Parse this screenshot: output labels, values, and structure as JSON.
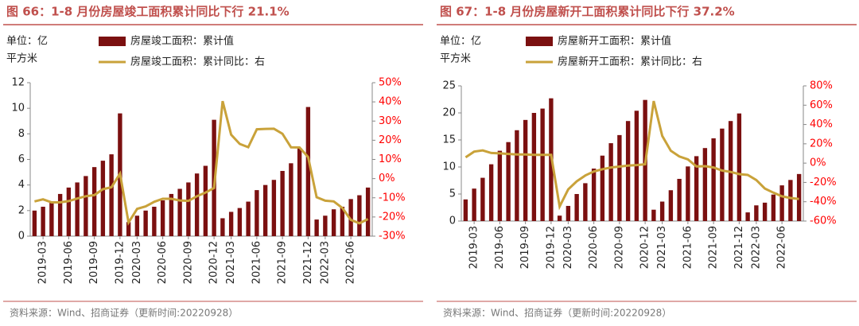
{
  "chart_data": [
    {
      "type": "bar-line",
      "title": "图 66：1-8 月份房屋竣工面积累计同比下行 21.1%",
      "unit_label": [
        "单位：亿",
        "平方米"
      ],
      "categories": [
        null,
        "2019-03",
        null,
        null,
        "2019-06",
        null,
        null,
        "2019-09",
        null,
        null,
        "2019-12",
        null,
        "2020-03",
        null,
        null,
        "2020-06",
        null,
        null,
        "2020-09",
        null,
        null,
        "2020-12",
        null,
        "2021-03",
        null,
        null,
        "2021-06",
        null,
        null,
        "2021-09",
        null,
        null,
        "2021-12",
        null,
        "2022-03",
        null,
        null,
        "2022-06",
        null,
        null
      ],
      "series": [
        {
          "name": "房屋竣工面积：累计值",
          "type": "bar",
          "color": "#7b1010",
          "values": [
            2.0,
            2.3,
            2.7,
            3.3,
            3.8,
            4.2,
            4.7,
            5.4,
            5.9,
            6.4,
            9.6,
            1.1,
            1.6,
            2.0,
            2.3,
            2.8,
            3.3,
            3.7,
            4.2,
            4.9,
            5.5,
            9.1,
            1.4,
            1.9,
            2.2,
            2.7,
            3.6,
            4.0,
            4.4,
            5.1,
            5.7,
            6.9,
            10.1,
            1.3,
            1.6,
            2.1,
            2.3,
            2.9,
            3.2,
            3.8
          ]
        },
        {
          "name": "房屋竣工面积：累计同比：右",
          "type": "line",
          "axis": "y2",
          "color": "#c9a23a",
          "values": [
            -11.9,
            -10.8,
            -12.4,
            -12.4,
            -11.7,
            -10.4,
            -9.2,
            -8.6,
            -5.5,
            -4.5,
            2.6,
            -22.9,
            -15.8,
            -14.5,
            -12.1,
            -10.5,
            -10.5,
            -11.4,
            -11.6,
            -9.2,
            -7.3,
            -4.9,
            40.4,
            22.9,
            18.1,
            16.4,
            25.7,
            25.9,
            26.0,
            23.4,
            16.3,
            16.2,
            11.2,
            -9.7,
            -11.5,
            -11.9,
            -15.3,
            -21.5,
            -23.3,
            -21.1
          ]
        }
      ],
      "ylim": [
        0,
        12
      ],
      "yticks": [
        0,
        2,
        4,
        6,
        8,
        10,
        12
      ],
      "y2lim": [
        -30,
        50
      ],
      "y2ticks": [
        {
          "value": -30,
          "label": "-30%"
        },
        {
          "value": -20,
          "label": "-20%"
        },
        {
          "value": -10,
          "label": "-10%"
        },
        {
          "value": 0,
          "label": "0%"
        },
        {
          "value": 10,
          "label": "10%"
        },
        {
          "value": 20,
          "label": "20%"
        },
        {
          "value": 30,
          "label": "30%"
        },
        {
          "value": 40,
          "label": "40%"
        },
        {
          "value": 50,
          "label": "50%"
        }
      ],
      "source": "资料来源：Wind、招商证券（更新时间:20220928）"
    },
    {
      "type": "bar-line",
      "title": "图 67：1-8 月份房屋新开工面积累计同比下行 37.2%",
      "unit_label": [
        "单位：亿",
        "平方米"
      ],
      "categories": [
        null,
        "2019-03",
        null,
        null,
        "2019-06",
        null,
        null,
        "2019-09",
        null,
        null,
        "2019-12",
        null,
        "2020-03",
        null,
        null,
        "2020-06",
        null,
        null,
        "2020-09",
        null,
        null,
        "2020-12",
        null,
        "2021-03",
        null,
        null,
        "2021-06",
        null,
        null,
        "2021-09",
        null,
        null,
        "2021-12",
        null,
        "2022-03",
        null,
        null,
        "2022-06",
        null,
        null
      ],
      "series": [
        {
          "name": "房屋新开工面积：累计值",
          "type": "bar",
          "color": "#7b1010",
          "values": [
            4.0,
            6.0,
            8.0,
            10.5,
            13.0,
            14.6,
            16.8,
            18.7,
            20.0,
            20.8,
            22.7,
            1.0,
            2.8,
            5.0,
            7.0,
            9.7,
            12.1,
            14.4,
            15.9,
            18.5,
            20.4,
            22.4,
            2.1,
            3.6,
            5.7,
            7.8,
            10.1,
            12.0,
            13.5,
            15.3,
            17.1,
            18.5,
            19.9,
            1.6,
            2.9,
            3.4,
            4.9,
            6.6,
            7.6,
            8.7
          ]
        },
        {
          "name": "房屋新开工面积：累计同比：右",
          "type": "line",
          "axis": "y2",
          "color": "#c9a23a",
          "values": [
            6.0,
            11.9,
            13.1,
            10.5,
            10.1,
            9.5,
            8.9,
            8.9,
            8.6,
            8.6,
            8.5,
            -44.9,
            -27.2,
            -18.8,
            -12.8,
            -8.7,
            -6.3,
            -4.5,
            -3.6,
            -2.6,
            -2.0,
            -1.2,
            64.3,
            28.2,
            12.8,
            6.9,
            3.8,
            -3.4,
            -3.2,
            -4.5,
            -7.7,
            -9.1,
            -11.4,
            -12.2,
            -17.5,
            -26.3,
            -30.6,
            -34.4,
            -36.1,
            -37.2
          ]
        }
      ],
      "ylim": [
        0,
        25
      ],
      "yticks": [
        0,
        5,
        10,
        15,
        20,
        25
      ],
      "y2lim": [
        -60,
        80
      ],
      "y2ticks": [
        {
          "value": -60,
          "label": "-60%"
        },
        {
          "value": -40,
          "label": "-40%"
        },
        {
          "value": -20,
          "label": "-20%"
        },
        {
          "value": 0,
          "label": "0%"
        },
        {
          "value": 20,
          "label": "20%"
        },
        {
          "value": 40,
          "label": "40%"
        },
        {
          "value": 60,
          "label": "60%"
        },
        {
          "value": 80,
          "label": "80%"
        }
      ],
      "source": "资料来源：Wind、招商证券（更新时间:20220928）"
    }
  ]
}
